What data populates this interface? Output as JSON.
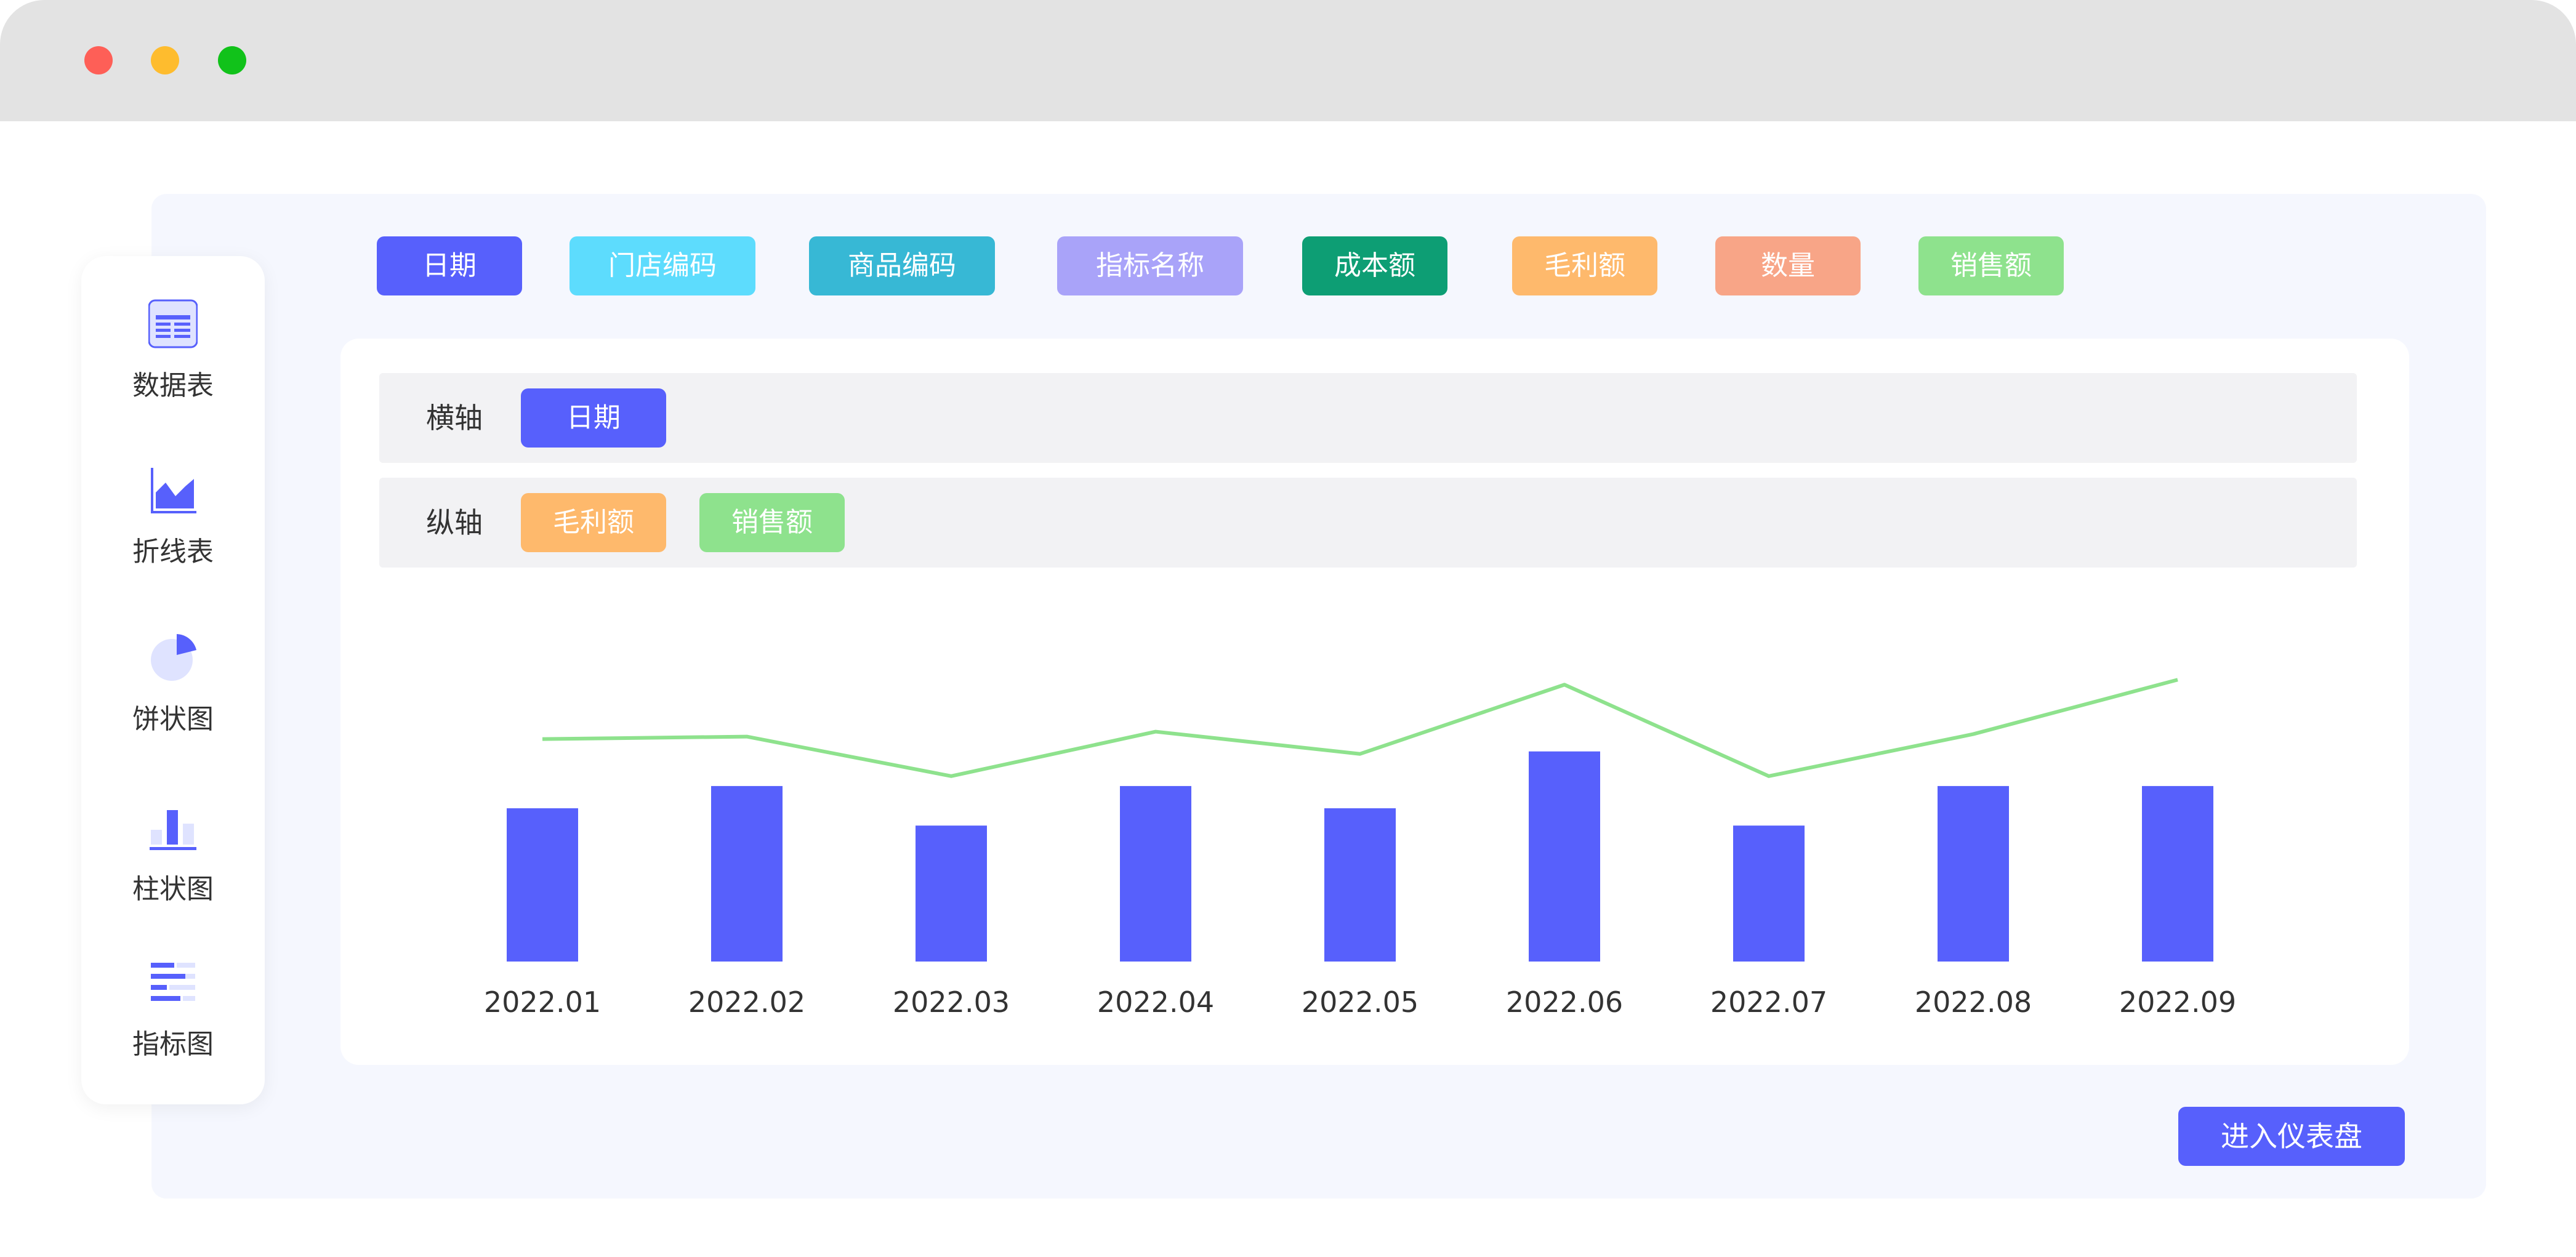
{
  "window": {
    "controls": [
      {
        "name": "close",
        "color": "#fe5f57"
      },
      {
        "name": "minimize",
        "color": "#febc2e"
      },
      {
        "name": "maximize",
        "color": "#11c21a"
      }
    ]
  },
  "sidebar": {
    "items": [
      {
        "label": "数据表",
        "icon": "table-icon"
      },
      {
        "label": "折线表",
        "icon": "area-chart-icon"
      },
      {
        "label": "饼状图",
        "icon": "pie-chart-icon"
      },
      {
        "label": "柱状图",
        "icon": "bar-chart-icon"
      },
      {
        "label": "指标图",
        "icon": "indicator-chart-icon"
      }
    ]
  },
  "fields": [
    {
      "label": "日期",
      "color": "#5760fc"
    },
    {
      "label": "门店编码",
      "color": "#5ddcfd"
    },
    {
      "label": "商品编码",
      "color": "#37b8d5"
    },
    {
      "label": "指标名称",
      "color": "#a9a3f9"
    },
    {
      "label": "成本额",
      "color": "#0d9e74"
    },
    {
      "label": "毛利额",
      "color": "#feb96c"
    },
    {
      "label": "数量",
      "color": "#f8a587"
    },
    {
      "label": "销售额",
      "color": "#8ee28d"
    }
  ],
  "axes": {
    "x": {
      "label": "横轴",
      "fields": [
        {
          "label": "日期",
          "color": "#5760fc"
        }
      ]
    },
    "y": {
      "label": "纵轴",
      "fields": [
        {
          "label": "毛利额",
          "color": "#feb96c"
        },
        {
          "label": "销售额",
          "color": "#8ee28d"
        }
      ]
    }
  },
  "chart_data": {
    "type": "bar",
    "categories": [
      "2022.01",
      "2022.02",
      "2022.03",
      "2022.04",
      "2022.05",
      "2022.06",
      "2022.07",
      "2022.08",
      "2022.09"
    ],
    "series": [
      {
        "type": "bar",
        "color": "#5760fc",
        "values": [
          62,
          71,
          55,
          71,
          62,
          85,
          55,
          71,
          71
        ]
      },
      {
        "type": "line",
        "color": "#8ee28d",
        "values": [
          90,
          91,
          75,
          93,
          84,
          112,
          75,
          92,
          114
        ]
      }
    ],
    "ylim": [
      0,
      130
    ],
    "grid": false,
    "legend": "none"
  },
  "footer": {
    "enter_dashboard_label": "进入仪表盘"
  }
}
